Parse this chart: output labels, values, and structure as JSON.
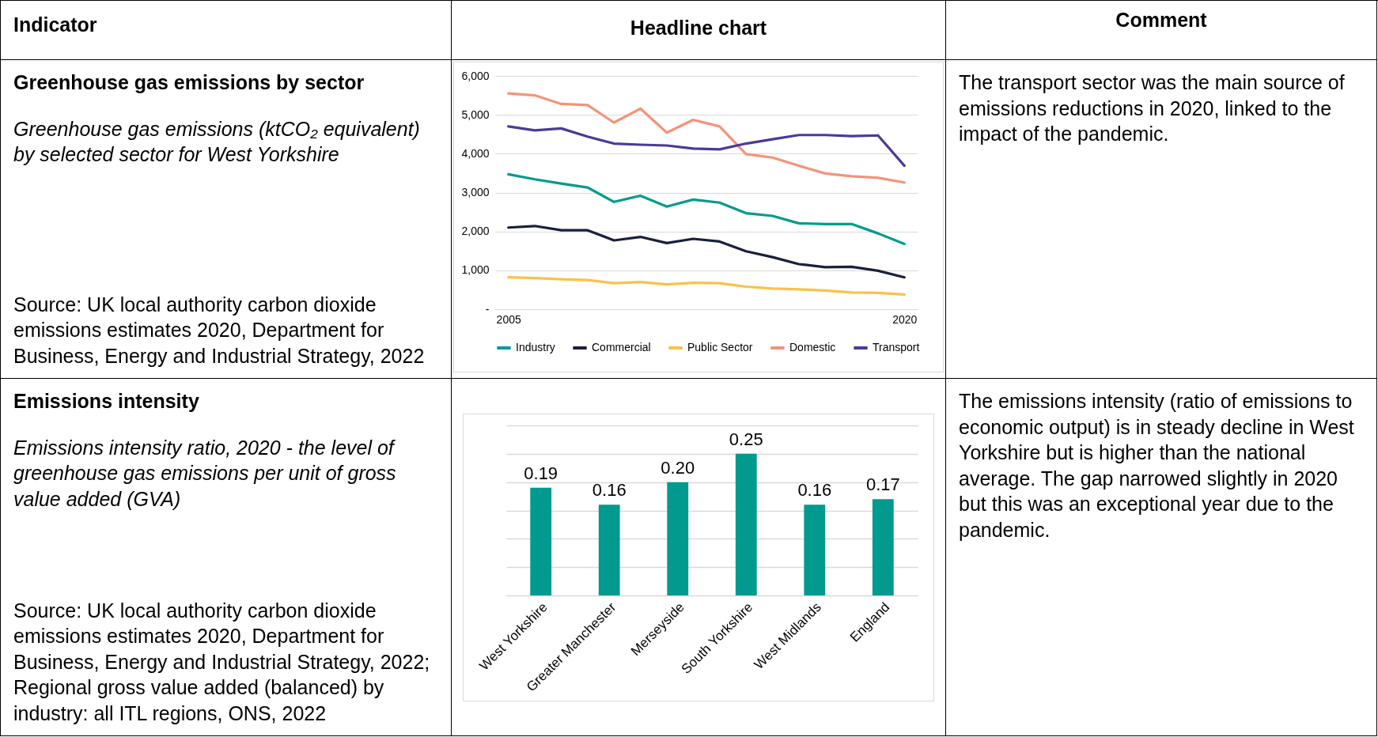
{
  "chart_data": [
    {
      "type": "other",
      "annotations": [
        "Indicator",
        "Headline chart",
        "Comment"
      ]
    },
    {
      "type": "other",
      "title": "Greenhouse gas emissions by sector",
      "subtitle": "Greenhouse gas emissions (ktCO₂ equivalent) by selected sector for West Yorkshire",
      "annotations": [
        "Source: UK local authority carbon dioxide emissions estimates 2020, Department for Business, Energy and Industrial Strategy, 2022"
      ]
    },
    {
      "type": "line",
      "x": [
        2005,
        2006,
        2007,
        2008,
        2009,
        2010,
        2011,
        2012,
        2013,
        2014,
        2015,
        2016,
        2017,
        2018,
        2019,
        2020
      ],
      "xlim": [
        2004.5,
        2020.5
      ],
      "xticks": [
        2005,
        2020
      ],
      "ylim": [
        0,
        6000
      ],
      "yticks": [
        {
          "value": 0,
          "label": "-"
        },
        {
          "value": 1000,
          "label": "1,000"
        },
        {
          "value": 2000,
          "label": "2,000"
        },
        {
          "value": 3000,
          "label": "3,000"
        },
        {
          "value": 4000,
          "label": "4,000"
        },
        {
          "value": 5000,
          "label": "5,000"
        },
        {
          "value": 6000,
          "label": "6,000"
        }
      ],
      "grid": "y",
      "legend": "bottom",
      "marker": "none",
      "line_style": "solid",
      "series": [
        {
          "name": "Industry",
          "color": "#009b8d",
          "values": [
            3470,
            3340,
            3230,
            3130,
            2760,
            2920,
            2640,
            2820,
            2740,
            2470,
            2400,
            2210,
            2190,
            2190,
            1950,
            1680
          ]
        },
        {
          "name": "Commercial",
          "color": "#1a1f3c",
          "values": [
            2100,
            2140,
            2030,
            2030,
            1770,
            1860,
            1700,
            1810,
            1740,
            1490,
            1340,
            1160,
            1080,
            1090,
            990,
            820
          ]
        },
        {
          "name": "Public Sector",
          "color": "#fbc14a",
          "values": [
            820,
            800,
            770,
            750,
            670,
            700,
            640,
            680,
            670,
            580,
            530,
            510,
            480,
            430,
            420,
            380
          ]
        },
        {
          "name": "Domestic",
          "color": "#f4937a",
          "values": [
            5550,
            5500,
            5280,
            5250,
            4800,
            5160,
            4540,
            4870,
            4700,
            3990,
            3900,
            3690,
            3490,
            3420,
            3380,
            3260
          ]
        },
        {
          "name": "Transport",
          "color": "#4b3a9a",
          "values": [
            4700,
            4600,
            4650,
            4440,
            4260,
            4230,
            4210,
            4130,
            4110,
            4260,
            4370,
            4480,
            4480,
            4450,
            4470,
            3690
          ]
        }
      ]
    },
    {
      "type": "other",
      "annotations": [
        "The transport sector was the main source of emissions reductions in 2020, linked to the impact of the pandemic."
      ]
    },
    {
      "type": "other",
      "title": "Emissions intensity",
      "subtitle": "Emissions intensity ratio, 2020 - the level of greenhouse gas emissions per unit of gross value added (GVA)",
      "annotations": [
        "Source: UK local authority carbon dioxide emissions estimates 2020, Department for Business, Energy and Industrial Strategy, 2022; Regional gross value added (balanced) by industry: all ITL regions, ONS, 2022"
      ]
    },
    {
      "type": "bar",
      "categories": [
        "West Yorkshire",
        "Greater Manchester",
        "Merseyside",
        "South Yorkshire",
        "West Midlands",
        "England"
      ],
      "values": [
        0.19,
        0.16,
        0.2,
        0.25,
        0.16,
        0.17
      ],
      "value_labels": [
        "0.19",
        "0.16",
        "0.20",
        "0.25",
        "0.16",
        "0.17"
      ],
      "color": "#009a8e",
      "ylim": [
        0,
        0.3
      ],
      "grid": "y",
      "tick_labels": "x"
    },
    {
      "type": "other",
      "annotations": [
        "The emissions intensity (ratio of emissions to economic output) is in steady decline in West Yorkshire but is higher than the national average.  The gap narrowed slightly in 2020 but this was an exceptional year due to the pandemic."
      ]
    }
  ]
}
